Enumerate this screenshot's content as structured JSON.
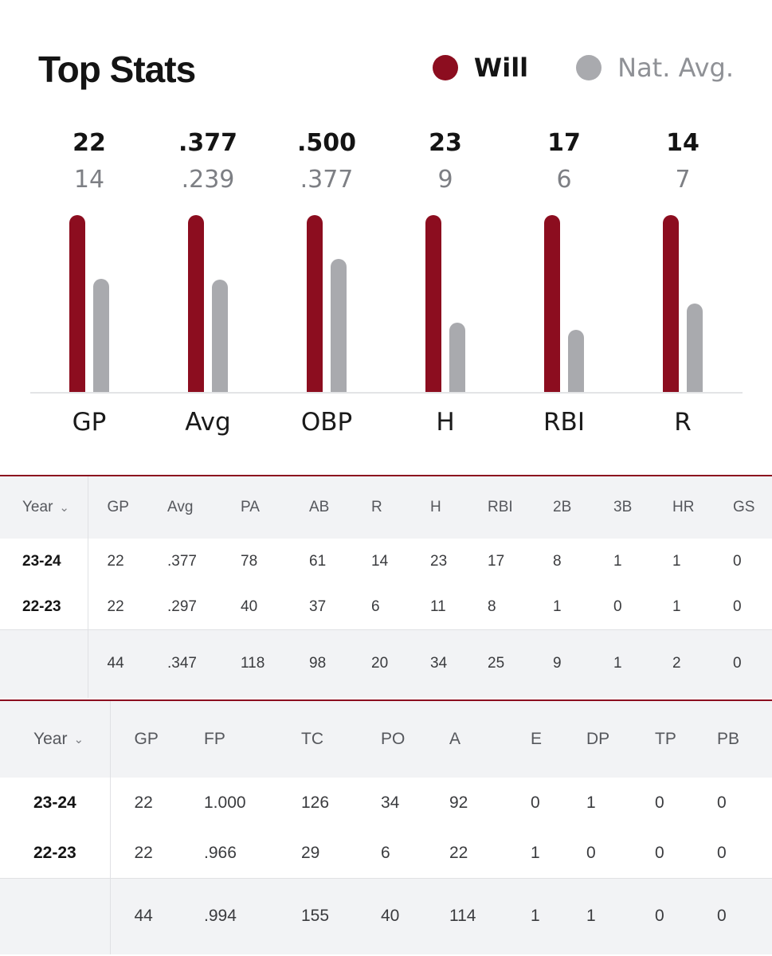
{
  "header": {
    "title": "Top Stats"
  },
  "legend": [
    {
      "label": "Will",
      "color": "#8c0d1f"
    },
    {
      "label": "Nat. Avg.",
      "color": "#a9aaae"
    }
  ],
  "chart_data": {
    "type": "bar",
    "categories": [
      "GP",
      "Avg",
      "OBP",
      "H",
      "RBI",
      "R"
    ],
    "series": [
      {
        "name": "Will",
        "values": [
          "22",
          ".377",
          ".500",
          "23",
          "17",
          "14"
        ],
        "color": "#8c0d1f"
      },
      {
        "name": "Nat. Avg.",
        "values": [
          "14",
          ".239",
          ".377",
          "9",
          "6",
          "7"
        ],
        "color": "#a9aaae"
      }
    ],
    "relative_nat_avg": [
      0.64,
      0.634,
      0.754,
      0.391,
      0.353,
      0.5
    ]
  },
  "batting": {
    "year_header": "Year",
    "columns": [
      "GP",
      "Avg",
      "PA",
      "AB",
      "R",
      "H",
      "RBI",
      "2B",
      "3B",
      "HR",
      "GS"
    ],
    "rows": [
      {
        "year": "23-24",
        "values": [
          "22",
          ".377",
          "78",
          "61",
          "14",
          "23",
          "17",
          "8",
          "1",
          "1",
          "0"
        ]
      },
      {
        "year": "22-23",
        "values": [
          "22",
          ".297",
          "40",
          "37",
          "6",
          "11",
          "8",
          "1",
          "0",
          "1",
          "0"
        ]
      }
    ],
    "totals": [
      "44",
      ".347",
      "118",
      "98",
      "20",
      "34",
      "25",
      "9",
      "1",
      "2",
      "0"
    ]
  },
  "fielding": {
    "year_header": "Year",
    "columns": [
      "GP",
      "FP",
      "TC",
      "PO",
      "A",
      "E",
      "DP",
      "TP",
      "PB"
    ],
    "rows": [
      {
        "year": "23-24",
        "values": [
          "22",
          "1.000",
          "126",
          "34",
          "92",
          "0",
          "1",
          "0",
          "0"
        ]
      },
      {
        "year": "22-23",
        "values": [
          "22",
          ".966",
          "29",
          "6",
          "22",
          "1",
          "0",
          "0",
          "0"
        ]
      }
    ],
    "totals": [
      "44",
      ".994",
      "155",
      "40",
      "114",
      "1",
      "1",
      "0",
      "0"
    ]
  }
}
